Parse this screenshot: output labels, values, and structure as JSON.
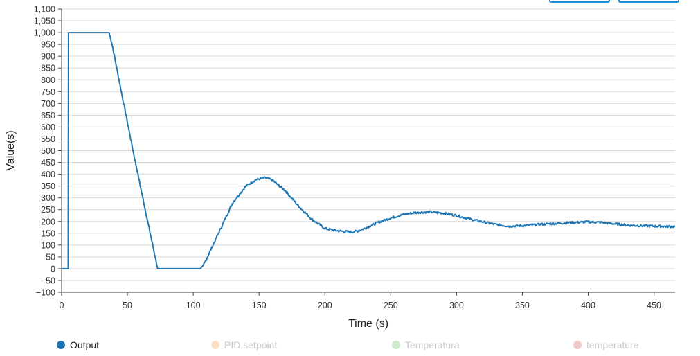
{
  "buttons": [
    {
      "label": ""
    },
    {
      "label": ""
    }
  ],
  "legend": [
    {
      "label": "Output",
      "color": "#1f77b4",
      "visible": true
    },
    {
      "label": "PID.setpoint",
      "color": "#fde0c2",
      "visible": false
    },
    {
      "label": "Temperatura",
      "color": "#cdeccb",
      "visible": false
    },
    {
      "label": "temperature",
      "color": "#f1c9c9",
      "visible": false
    }
  ],
  "chart_data": {
    "type": "line",
    "title": "",
    "xlabel": "Time (s)",
    "ylabel": "Value(s)",
    "xlim": [
      0,
      466
    ],
    "ylim": [
      -100,
      1100
    ],
    "xticks": [
      0,
      50,
      100,
      150,
      200,
      250,
      300,
      350,
      400,
      450
    ],
    "xtick_labels": [
      "0",
      "50",
      "100",
      "150",
      "200",
      "250",
      "300",
      "350",
      "400",
      "450"
    ],
    "yticks": [
      -100,
      -50,
      0,
      50,
      100,
      150,
      200,
      250,
      300,
      350,
      400,
      450,
      500,
      550,
      600,
      650,
      700,
      750,
      800,
      850,
      900,
      950,
      1000,
      1050,
      1100
    ],
    "ytick_labels": [
      "−100",
      "−50",
      "0",
      "50",
      "100",
      "150",
      "200",
      "250",
      "300",
      "350",
      "400",
      "450",
      "500",
      "550",
      "600",
      "650",
      "700",
      "750",
      "800",
      "850",
      "900",
      "950",
      "1,000",
      "1,050",
      "1,100"
    ],
    "grid": true,
    "series": [
      {
        "name": "Output",
        "color": "#1f77b4",
        "x": [
          0,
          5,
          5.2,
          36,
          38,
          45,
          55,
          65,
          73,
          105,
          107,
          110,
          120,
          130,
          140,
          148,
          155,
          160,
          170,
          180,
          190,
          200,
          210,
          220,
          225,
          230,
          240,
          250,
          260,
          270,
          280,
          290,
          300,
          310,
          320,
          330,
          340,
          350,
          360,
          370,
          380,
          390,
          400,
          410,
          420,
          430,
          440,
          450,
          466
        ],
        "y": [
          0,
          0,
          1000,
          1000,
          960,
          760,
          480,
          210,
          0,
          0,
          5,
          40,
          160,
          280,
          350,
          378,
          385,
          375,
          330,
          265,
          210,
          170,
          160,
          155,
          160,
          170,
          195,
          215,
          230,
          238,
          240,
          235,
          225,
          210,
          198,
          187,
          180,
          182,
          186,
          190,
          193,
          196,
          198,
          196,
          190,
          184,
          182,
          180,
          178
        ]
      }
    ]
  }
}
